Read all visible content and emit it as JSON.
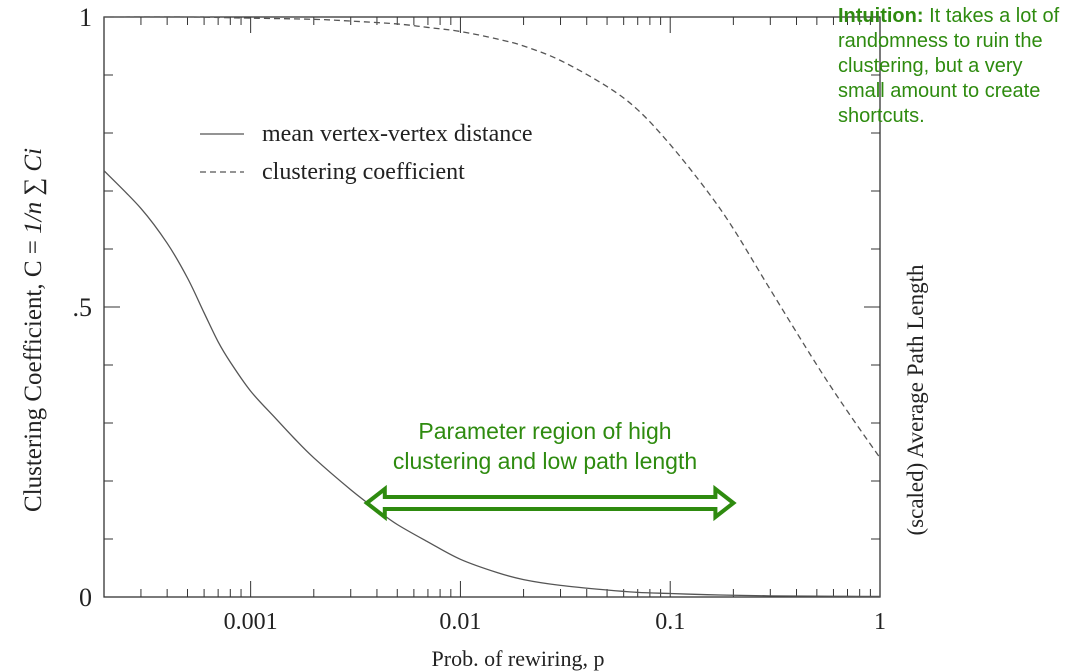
{
  "chart_data": {
    "type": "line",
    "xlabel": "Prob. of rewiring, p",
    "ylabel_left": "Clustering Coefficient, C  =",
    "ylabel_left_formula": "1/n ∑ Ci",
    "ylabel_right": "(scaled) Average Path Length",
    "x_scale": "log",
    "xlim": [
      0.0002,
      1
    ],
    "ylim": [
      0,
      1
    ],
    "x_ticks": [
      {
        "value": 0.001,
        "label": "0.001"
      },
      {
        "value": 0.01,
        "label": "0.01"
      },
      {
        "value": 0.1,
        "label": "0.1"
      },
      {
        "value": 1,
        "label": "1"
      }
    ],
    "y_ticks": [
      {
        "value": 0,
        "label": "0"
      },
      {
        "value": 0.5,
        "label": ".5"
      },
      {
        "value": 1,
        "label": "1"
      }
    ],
    "legend_position": "top-left",
    "series": [
      {
        "name": "mean vertex-vertex distance",
        "style": "solid",
        "x": [
          0.0002,
          0.0003,
          0.0004,
          0.0005,
          0.0006,
          0.0007,
          0.0008,
          0.001,
          0.0013,
          0.0016,
          0.002,
          0.003,
          0.004,
          0.005,
          0.007,
          0.01,
          0.015,
          0.02,
          0.03,
          0.05,
          0.07,
          0.1,
          0.15,
          0.2,
          0.3,
          0.5,
          0.7,
          1
        ],
        "y": [
          0.735,
          0.67,
          0.61,
          0.55,
          0.49,
          0.44,
          0.405,
          0.355,
          0.31,
          0.275,
          0.24,
          0.185,
          0.15,
          0.125,
          0.095,
          0.065,
          0.042,
          0.03,
          0.02,
          0.012,
          0.008,
          0.006,
          0.004,
          0.003,
          0.002,
          0.0015,
          0.0012,
          0.001
        ]
      },
      {
        "name": "clustering coefficient",
        "style": "dashed",
        "x": [
          0.0002,
          0.0005,
          0.001,
          0.002,
          0.003,
          0.005,
          0.007,
          0.01,
          0.015,
          0.02,
          0.03,
          0.05,
          0.07,
          0.1,
          0.15,
          0.2,
          0.3,
          0.5,
          0.7,
          1
        ],
        "y": [
          1.0,
          1.0,
          0.998,
          0.996,
          0.993,
          0.988,
          0.982,
          0.975,
          0.962,
          0.95,
          0.925,
          0.88,
          0.84,
          0.78,
          0.7,
          0.635,
          0.53,
          0.4,
          0.32,
          0.24
        ]
      }
    ]
  },
  "annotations": {
    "intuition_bold": "Intuition:",
    "intuition_text": " It takes a lot of randomness to ruin the clustering, but a very small amount to create shortcuts.",
    "region_line1": "Parameter region of high",
    "region_line2": "clustering and low path length",
    "arrow_from_p": 0.0035,
    "arrow_to_p": 0.2
  },
  "colors": {
    "annotation_green": "#2e8b0f",
    "line_gray": "#555555",
    "axis": "#333333"
  }
}
